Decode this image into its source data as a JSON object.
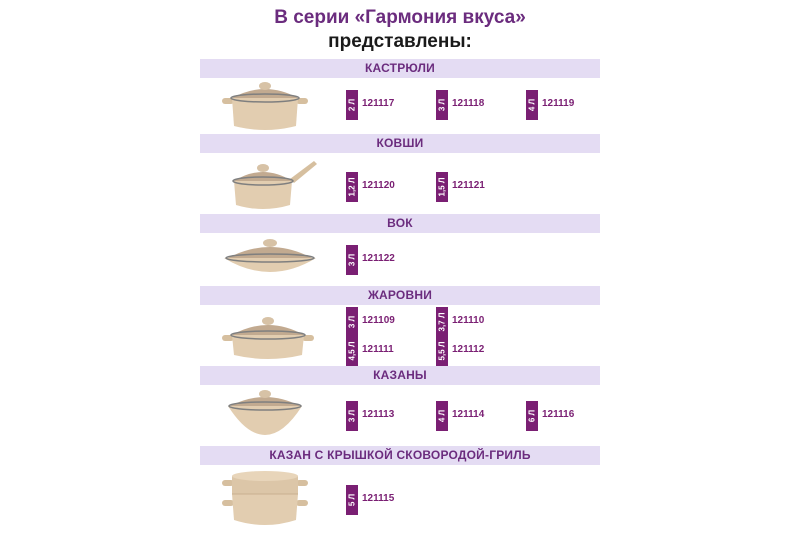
{
  "heading": {
    "line1": "В серии «Гармония вкуса»",
    "line2": "представлены:"
  },
  "sections": [
    {
      "name": "КАСТРЮЛИ",
      "image": "pot-with-glass-lid",
      "items": [
        {
          "size": "2 Л",
          "code": "121117"
        },
        {
          "size": "3 Л",
          "code": "121118"
        },
        {
          "size": "4 Л",
          "code": "121119"
        }
      ]
    },
    {
      "name": "КОВШИ",
      "image": "saucepan-with-handle",
      "items": [
        {
          "size": "1,2 Л",
          "code": "121120"
        },
        {
          "size": "1,5 Л",
          "code": "121121"
        }
      ]
    },
    {
      "name": "ВОК",
      "image": "wok-with-glass-lid",
      "items": [
        {
          "size": "3 Л",
          "code": "121122"
        }
      ]
    },
    {
      "name": "ЖАРОВНИ",
      "image": "brazier-with-glass-lid",
      "items": [
        {
          "size": "3 Л",
          "code": "121109"
        },
        {
          "size": "3,7 Л",
          "code": "121110"
        },
        {
          "size": "4,5 Л",
          "code": "121111"
        },
        {
          "size": "5,5 Л",
          "code": "121112"
        }
      ]
    },
    {
      "name": "КАЗАНЫ",
      "image": "cauldron-with-glass-lid",
      "items": [
        {
          "size": "3 Л",
          "code": "121113"
        },
        {
          "size": "4 Л",
          "code": "121114"
        },
        {
          "size": "6 Л",
          "code": "121116"
        }
      ]
    },
    {
      "name": "КАЗАН С КРЫШКОЙ СКОВОРОДОЙ-ГРИЛЬ",
      "image": "cauldron-with-grill-lid",
      "items": [
        {
          "size": "5 Л",
          "code": "121115"
        }
      ]
    }
  ],
  "colors": {
    "accent": "#7a1f73",
    "band": "#e4dcf3",
    "title": "#6b2c7e"
  }
}
